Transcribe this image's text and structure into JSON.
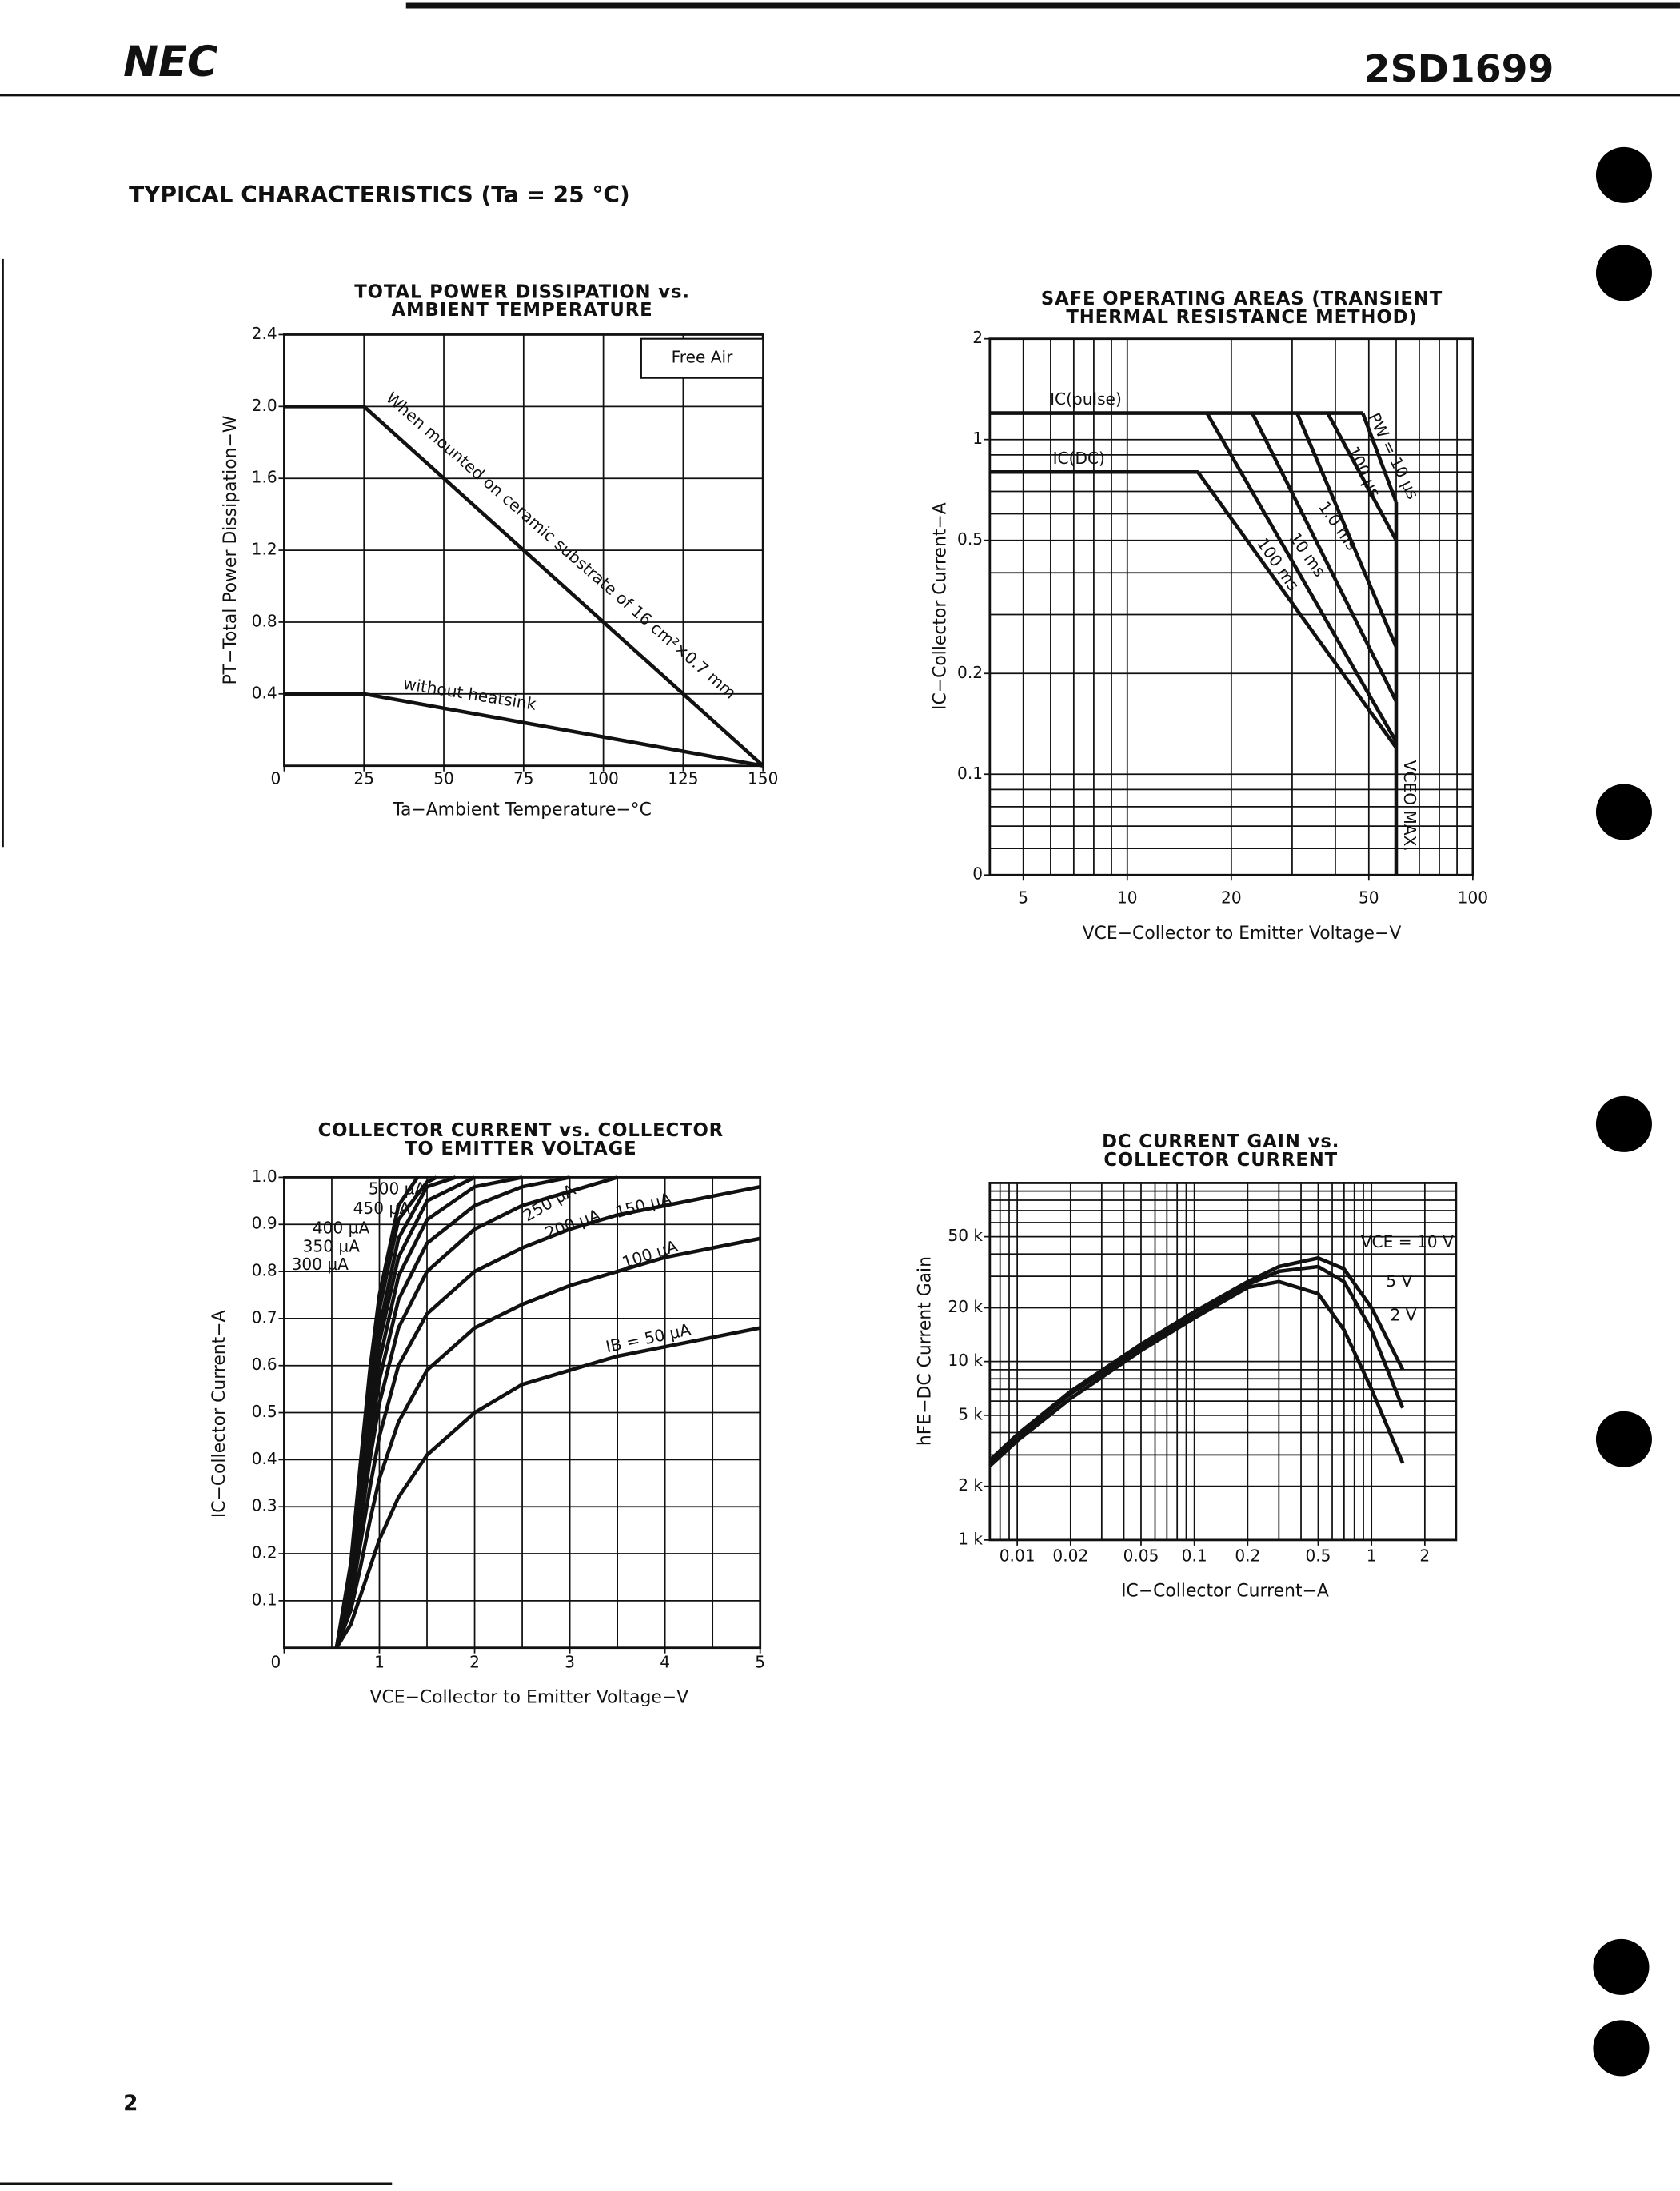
{
  "header": {
    "brand": "NEC",
    "part_number": "2SD1699",
    "section_title": "TYPICAL CHARACTERISTICS (Ta = 25 °C)",
    "page_number": "2"
  },
  "chart_data": [
    {
      "type": "line",
      "title": [
        "TOTAL POWER DISSIPATION vs.",
        "AMBIENT TEMPERATURE"
      ],
      "x_label": "Ta−Ambient Temperature−°C",
      "y_label": "PT−Total Power Dissipation−W",
      "note": "Free Air",
      "xlim": [
        0,
        150
      ],
      "xticks": [
        0,
        25,
        50,
        75,
        100,
        125,
        150
      ],
      "ylim": [
        0,
        2.4
      ],
      "yticks": [
        0.4,
        0.8,
        1.2,
        1.6,
        {
          "value": 2,
          "label": "2.0"
        },
        2.4
      ],
      "grid": true,
      "color": "#111",
      "series": [
        {
          "name": "When mounted on ceramic substrate of 16 cm²×0.7 mm",
          "x": [
            0,
            25,
            150
          ],
          "values": [
            2,
            2,
            0
          ]
        },
        {
          "name": "without heatsink",
          "x": [
            0,
            25,
            150
          ],
          "values": [
            0.4,
            0.4,
            0
          ]
        }
      ]
    },
    {
      "type": "line",
      "title": [
        "SAFE OPERATING AREAS (TRANSIENT",
        "THERMAL RESISTANCE METHOD)"
      ],
      "x_label": "VCE−Collector to Emitter Voltage−V",
      "y_label": "IC−Collector Current−A",
      "xscale": "log",
      "yscale": "log",
      "xlim": [
        4,
        100
      ],
      "xticks": [
        5,
        10,
        20,
        50,
        100
      ],
      "xgrid": [
        5,
        6,
        7,
        8,
        9,
        10,
        20,
        30,
        40,
        50,
        60,
        70,
        80,
        90
      ],
      "ylim": [
        0.05,
        2
      ],
      "yticks": [
        {
          "value": 0.05,
          "label": "0"
        },
        0.1,
        0.2,
        0.5,
        1,
        2
      ],
      "ygrid": [
        0.06,
        0.07,
        0.08,
        0.09,
        0.1,
        0.2,
        0.3,
        0.4,
        0.5,
        0.6,
        0.7,
        0.8,
        0.9,
        1
      ],
      "grid": true,
      "color": "#111",
      "series": [
        {
          "name": "IC(pulse)",
          "x": [
            4,
            48
          ],
          "values": [
            1.2,
            1.2
          ]
        },
        {
          "name": "PW = 10 µs",
          "x": [
            48,
            60
          ],
          "values": [
            1.2,
            0.65
          ]
        },
        {
          "name": "100 µs",
          "x": [
            38,
            60
          ],
          "values": [
            1.2,
            0.5
          ]
        },
        {
          "name": "1.0 ms",
          "x": [
            31,
            60
          ],
          "values": [
            1.2,
            0.24
          ]
        },
        {
          "name": "10 ms",
          "x": [
            23,
            60
          ],
          "values": [
            1.2,
            0.165
          ]
        },
        {
          "name": "100 ms",
          "x": [
            17,
            60
          ],
          "values": [
            1.2,
            0.125
          ]
        },
        {
          "name": "IC(DC)",
          "x": [
            4,
            16,
            60
          ],
          "values": [
            0.8,
            0.8,
            0.12
          ]
        },
        {
          "name": "VCEO MAX.",
          "x": [
            60,
            60
          ],
          "values": [
            0.65,
            0.05
          ]
        }
      ]
    },
    {
      "type": "line",
      "title": [
        "COLLECTOR CURRENT vs. COLLECTOR",
        "TO EMITTER VOLTAGE"
      ],
      "x_label": "VCE−Collector to Emitter Voltage−V",
      "y_label": "IC−Collector Current−A",
      "xlim": [
        0,
        5
      ],
      "xticks": [
        0,
        1,
        2,
        3,
        4,
        5
      ],
      "xgrid": [
        0.5,
        1,
        1.5,
        2,
        2.5,
        3,
        3.5,
        4,
        4.5
      ],
      "ylim": [
        0,
        1
      ],
      "yticks": [
        0.1,
        0.2,
        0.3,
        0.4,
        0.5,
        0.6,
        0.7,
        0.8,
        0.9,
        {
          "value": 1,
          "label": "1.0"
        }
      ],
      "grid": true,
      "color": "#111",
      "series": [
        {
          "name": "IB = 50 µA",
          "x": [
            0.55,
            0.7,
            0.8,
            0.9,
            1,
            1.2,
            1.5,
            2,
            2.5,
            3,
            3.5,
            4,
            4.5,
            5
          ],
          "values": [
            0,
            0.05,
            0.11,
            0.17,
            0.23,
            0.32,
            0.41,
            0.5,
            0.56,
            0.59,
            0.62,
            0.64,
            0.66,
            0.68
          ]
        },
        {
          "name": "100 µA",
          "x": [
            0.55,
            0.7,
            0.8,
            0.9,
            1,
            1.2,
            1.5,
            2,
            2.5,
            3,
            3.5,
            4,
            4.5,
            5
          ],
          "values": [
            0,
            0.08,
            0.17,
            0.27,
            0.36,
            0.48,
            0.59,
            0.68,
            0.73,
            0.77,
            0.8,
            0.83,
            0.85,
            0.87
          ]
        },
        {
          "name": "150 µA",
          "x": [
            0.55,
            0.7,
            0.8,
            0.9,
            1,
            1.2,
            1.5,
            2,
            2.5,
            3,
            3.5,
            4,
            4.5,
            5
          ],
          "values": [
            0,
            0.1,
            0.22,
            0.34,
            0.45,
            0.6,
            0.71,
            0.8,
            0.85,
            0.89,
            0.92,
            0.94,
            0.96,
            0.98
          ]
        },
        {
          "name": "200 µA",
          "x": [
            0.55,
            0.7,
            0.8,
            0.9,
            1,
            1.2,
            1.5,
            2,
            2.5,
            3,
            3.5
          ],
          "values": [
            0,
            0.12,
            0.26,
            0.4,
            0.52,
            0.68,
            0.8,
            0.89,
            0.94,
            0.97,
            1
          ]
        },
        {
          "name": "250 µA",
          "x": [
            0.55,
            0.7,
            0.8,
            0.9,
            1,
            1.2,
            1.5,
            2,
            2.5,
            3
          ],
          "values": [
            0,
            0.13,
            0.29,
            0.44,
            0.57,
            0.74,
            0.86,
            0.94,
            0.98,
            1
          ]
        },
        {
          "name": "300 µA",
          "x": [
            0.55,
            0.7,
            0.8,
            0.9,
            1,
            1.2,
            1.5,
            2,
            2.5
          ],
          "values": [
            0,
            0.14,
            0.31,
            0.47,
            0.61,
            0.79,
            0.91,
            0.98,
            1
          ]
        },
        {
          "name": "350 µA",
          "x": [
            0.55,
            0.7,
            0.8,
            0.9,
            1,
            1.2,
            1.5,
            2
          ],
          "values": [
            0,
            0.15,
            0.33,
            0.5,
            0.65,
            0.83,
            0.95,
            1
          ]
        },
        {
          "name": "400 µA",
          "x": [
            0.55,
            0.7,
            0.8,
            0.9,
            1,
            1.2,
            1.5,
            1.8
          ],
          "values": [
            0,
            0.16,
            0.35,
            0.53,
            0.68,
            0.87,
            0.98,
            1
          ]
        },
        {
          "name": "450 µA",
          "x": [
            0.55,
            0.7,
            0.8,
            0.9,
            1,
            1.2,
            1.5,
            1.6
          ],
          "values": [
            0,
            0.17,
            0.37,
            0.56,
            0.72,
            0.91,
            0.99,
            1
          ]
        },
        {
          "name": "500 µA",
          "x": [
            0.55,
            0.7,
            0.8,
            0.9,
            1,
            1.2,
            1.4
          ],
          "values": [
            0,
            0.18,
            0.39,
            0.59,
            0.75,
            0.94,
            1
          ]
        }
      ]
    },
    {
      "type": "line",
      "title": [
        "DC CURRENT GAIN vs.",
        "COLLECTOR CURRENT"
      ],
      "x_label": "IC−Collector Current−A",
      "y_label": "hFE−DC Current Gain",
      "xscale": "log",
      "yscale": "log",
      "xlim": [
        0.007,
        3
      ],
      "xticks": [
        0.01,
        0.02,
        0.05,
        0.1,
        0.2,
        0.5,
        1,
        2
      ],
      "xgrid": [
        0.008,
        0.009,
        0.01,
        0.02,
        0.03,
        0.04,
        0.05,
        0.06,
        0.07,
        0.08,
        0.09,
        0.1,
        0.2,
        0.3,
        0.4,
        0.5,
        0.6,
        0.7,
        0.8,
        0.9,
        1,
        2
      ],
      "ylim": [
        1000,
        100000
      ],
      "yticks": [
        {
          "value": 1000,
          "label": "1 k"
        },
        {
          "value": 2000,
          "label": "2 k"
        },
        {
          "value": 5000,
          "label": "5 k"
        },
        {
          "value": 10000,
          "label": "10 k"
        },
        {
          "value": 20000,
          "label": "20 k"
        },
        {
          "value": 50000,
          "label": "50 k"
        }
      ],
      "ygrid": [
        2000,
        3000,
        4000,
        5000,
        6000,
        7000,
        8000,
        9000,
        10000,
        20000,
        30000,
        40000,
        50000,
        60000,
        70000,
        80000,
        90000
      ],
      "grid": true,
      "color": "#111",
      "series": [
        {
          "name": "VCE = 10 V",
          "x": [
            0.007,
            0.01,
            0.02,
            0.05,
            0.1,
            0.2,
            0.3,
            0.5,
            0.7,
            1,
            1.5
          ],
          "values": [
            2800,
            3900,
            6800,
            12500,
            19000,
            28000,
            34000,
            38000,
            33000,
            20000,
            9000
          ]
        },
        {
          "name": "5 V",
          "x": [
            0.007,
            0.01,
            0.02,
            0.05,
            0.1,
            0.2,
            0.3,
            0.5,
            0.7,
            1,
            1.5
          ],
          "values": [
            2700,
            3800,
            6600,
            12000,
            18000,
            27000,
            32000,
            34000,
            28000,
            15000,
            5500
          ]
        },
        {
          "name": "2 V",
          "x": [
            0.007,
            0.01,
            0.02,
            0.05,
            0.1,
            0.2,
            0.3,
            0.5,
            0.7,
            1,
            1.5
          ],
          "values": [
            2600,
            3600,
            6200,
            11500,
            17500,
            26000,
            28000,
            24000,
            15000,
            7000,
            2700
          ]
        }
      ]
    }
  ]
}
